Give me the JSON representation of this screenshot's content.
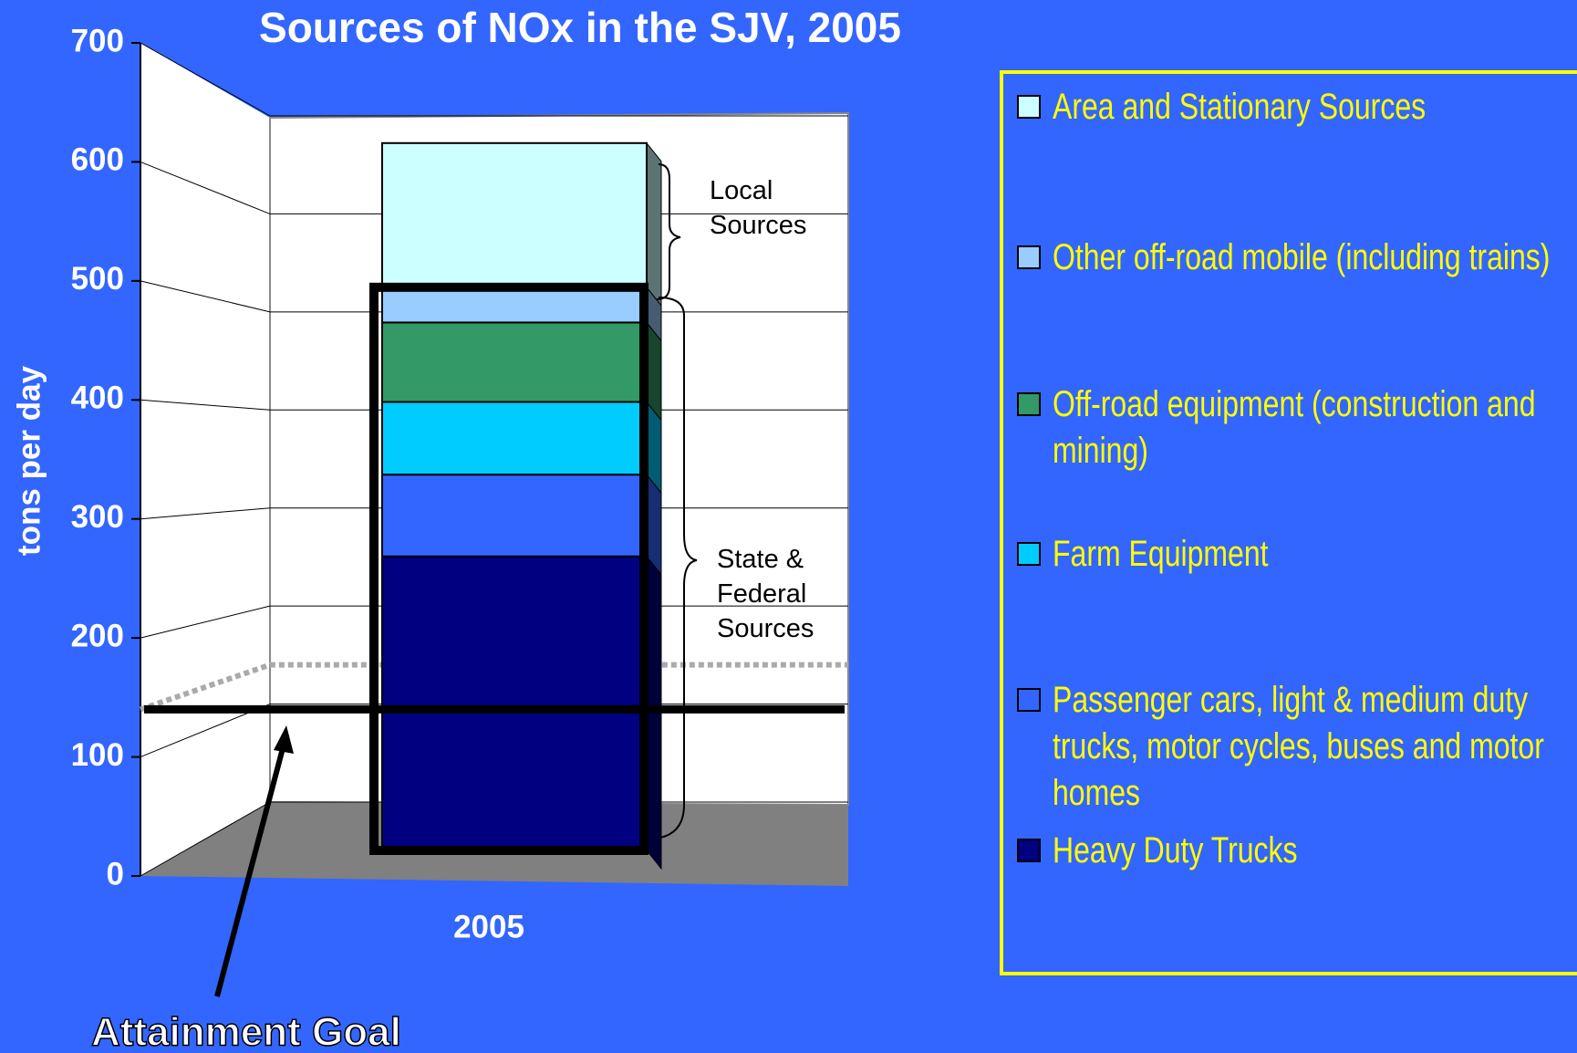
{
  "chart_data": {
    "type": "bar3d_stacked",
    "title": "Sources of NOx in the SJV, 2005",
    "ylabel": "tons per day",
    "categories": [
      "2005"
    ],
    "ylim": [
      0,
      700
    ],
    "yticks": [
      0,
      100,
      200,
      300,
      400,
      500,
      600,
      700
    ],
    "series": [
      {
        "name": "Heavy Duty Trucks",
        "color": "#000080",
        "values": [
          259
        ]
      },
      {
        "name": "Passenger cars, light & medium duty trucks, motor cycles, buses and motor homes",
        "color": "#3366ff",
        "values": [
          72
        ]
      },
      {
        "name": "Farm Equipment",
        "color": "#00ccff",
        "values": [
          64
        ]
      },
      {
        "name": "Off-road equipment (construction and mining)",
        "color": "#339966",
        "values": [
          70
        ]
      },
      {
        "name": "Other off-road mobile (including trains)",
        "color": "#99ccff",
        "values": [
          31
        ]
      },
      {
        "name": "Area and Stationary Sources",
        "color": "#ccffff",
        "values": [
          127
        ]
      }
    ],
    "attainment_goal": 140,
    "annotations": {
      "local": "Local Sources",
      "state": "State & Federal Sources",
      "goal": "Attainment Goal"
    }
  }
}
